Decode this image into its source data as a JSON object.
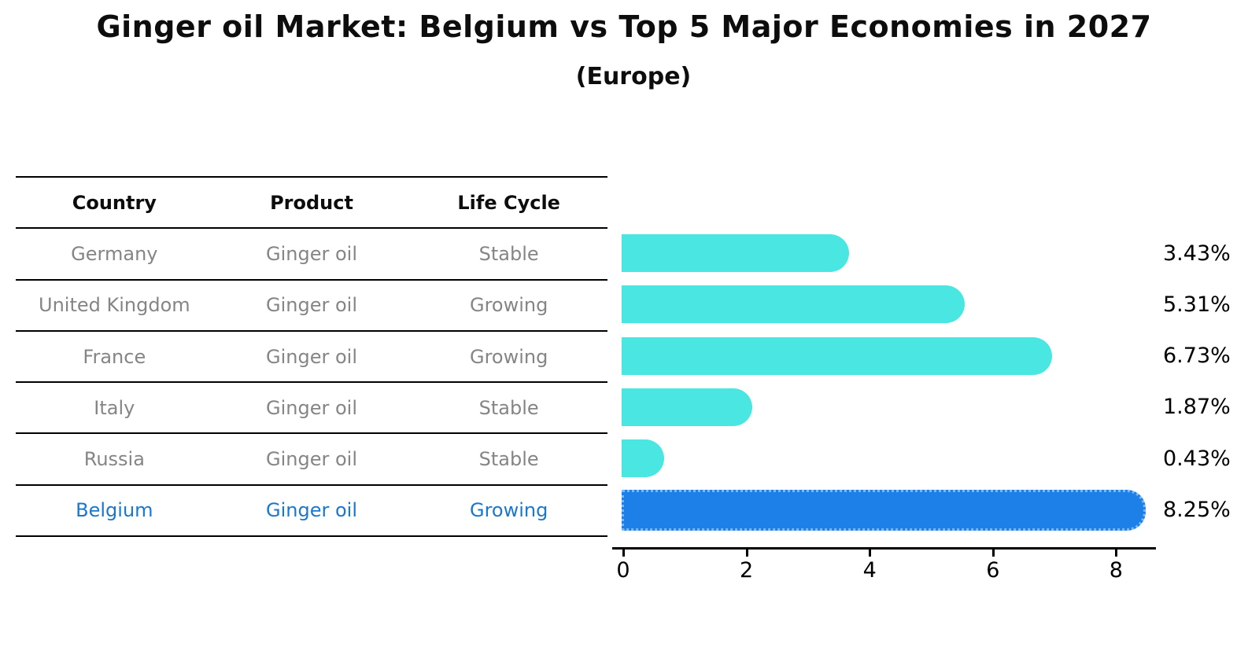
{
  "title": "Ginger oil Market: Belgium vs Top 5 Major Economies in 2027",
  "subtitle": "(Europe)",
  "table": {
    "headers": [
      "Country",
      "Product",
      "Life Cycle"
    ],
    "rows": [
      {
        "country": "Germany",
        "product": "Ginger oil",
        "life_cycle": "Stable",
        "highlight": false
      },
      {
        "country": "United Kingdom",
        "product": "Ginger oil",
        "life_cycle": "Growing",
        "highlight": false
      },
      {
        "country": "France",
        "product": "Ginger oil",
        "life_cycle": "Growing",
        "highlight": false
      },
      {
        "country": "Italy",
        "product": "Ginger oil",
        "life_cycle": "Stable",
        "highlight": false
      },
      {
        "country": "Russia",
        "product": "Ginger oil",
        "life_cycle": "Stable",
        "highlight": false
      },
      {
        "country": "Belgium",
        "product": "Ginger oil",
        "life_cycle": "Growing",
        "highlight": true
      }
    ]
  },
  "chart_data": {
    "type": "bar",
    "orientation": "horizontal",
    "title": "Ginger oil Market: Belgium vs Top 5 Major Economies in 2027",
    "subtitle": "(Europe)",
    "categories": [
      "Germany",
      "United Kingdom",
      "France",
      "Italy",
      "Russia",
      "Belgium"
    ],
    "values": [
      3.43,
      5.31,
      6.73,
      1.87,
      0.43,
      8.25
    ],
    "value_labels": [
      "3.43%",
      "5.31%",
      "6.73%",
      "1.87%",
      "0.43%",
      "8.25%"
    ],
    "unit": "%",
    "highlight_index": 5,
    "xlim": [
      0,
      8.66
    ],
    "x_ticks": [
      0,
      2,
      4,
      6,
      8
    ],
    "grid": false,
    "legend": false
  },
  "colors": {
    "bar_default": "#49e6e2",
    "bar_highlight": "#1d80e9",
    "bar_highlight_border": "#7cb8f4",
    "highlight_text": "#1878d0",
    "body_text": "#858585",
    "header_text": "#0d0d0d",
    "axis": "#000000"
  }
}
